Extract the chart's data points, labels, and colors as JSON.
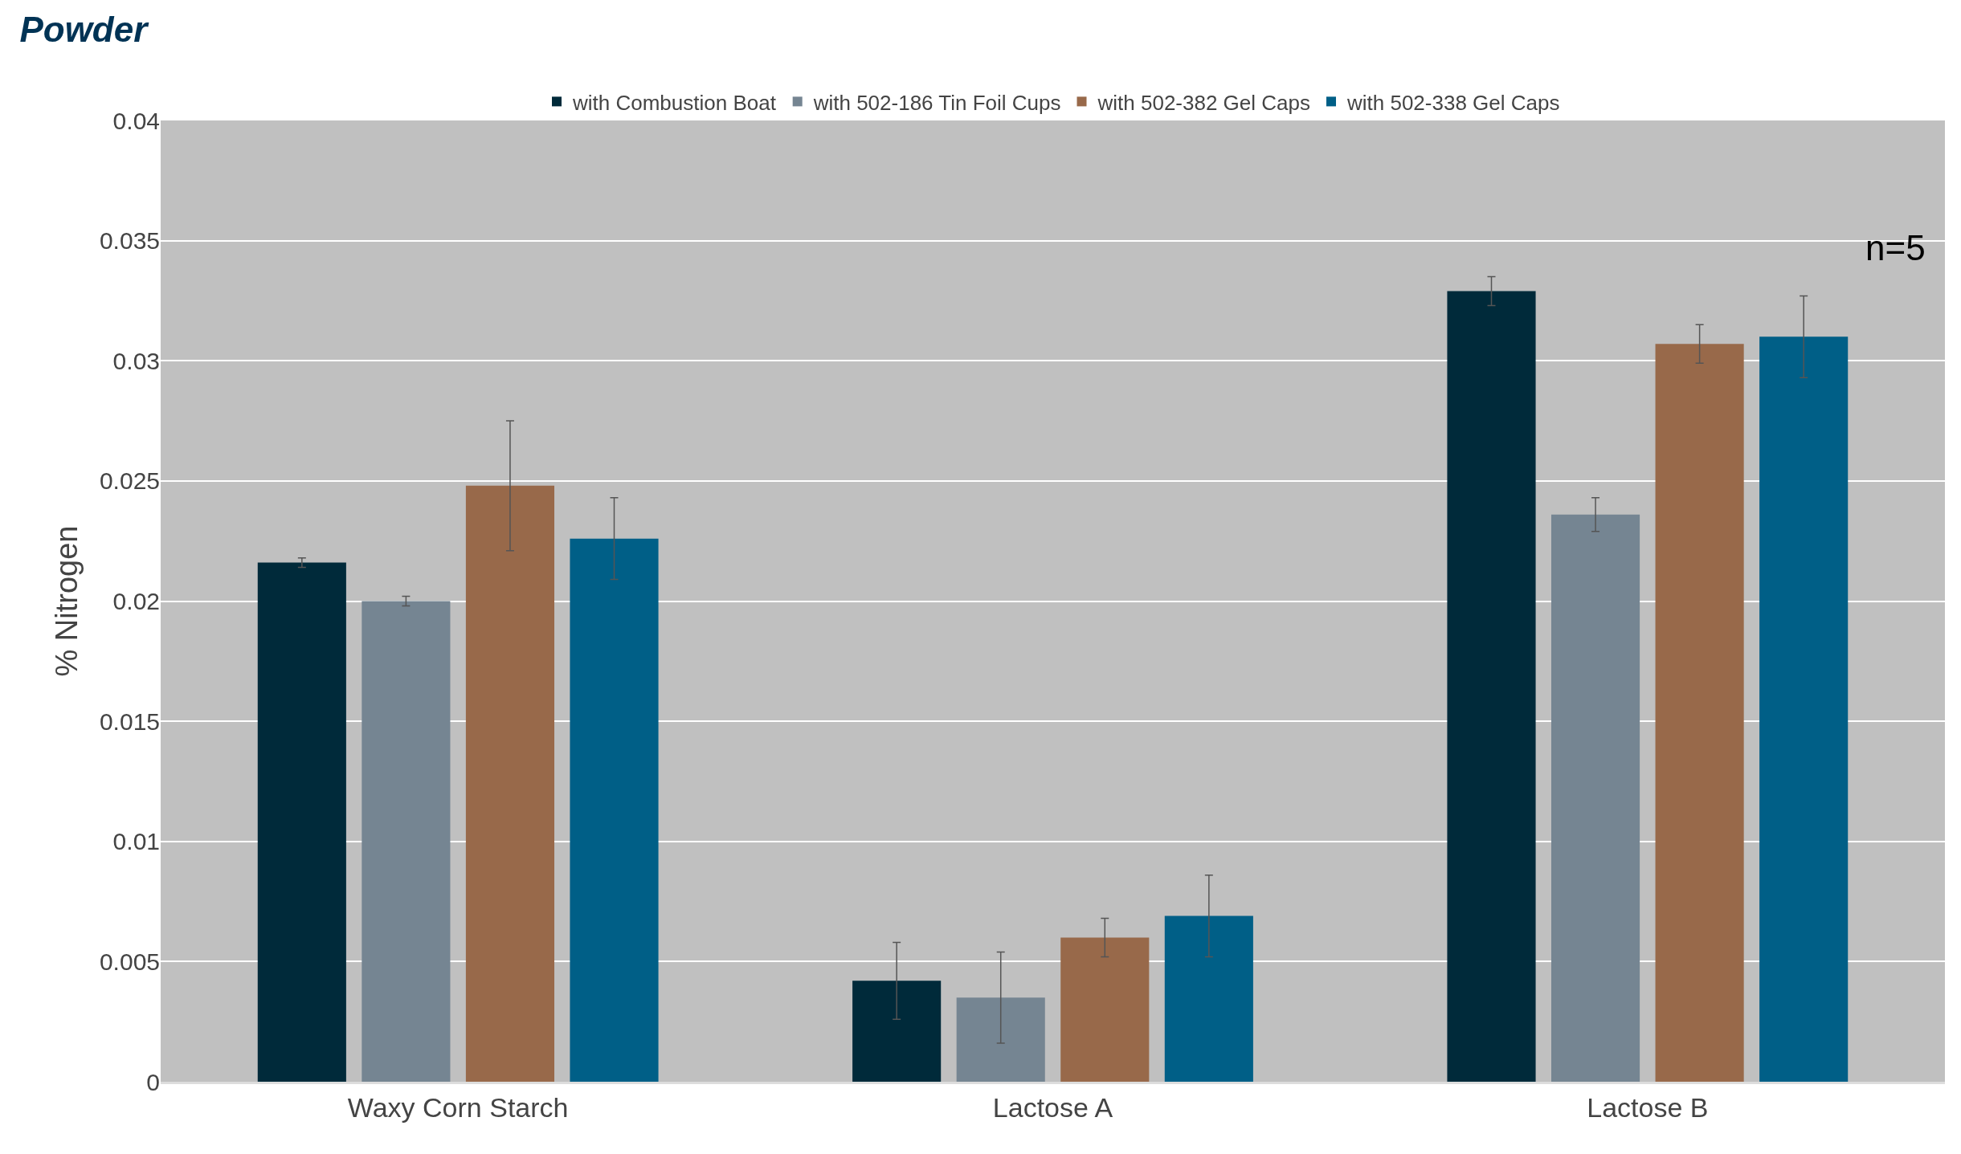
{
  "chart_data": {
    "type": "bar",
    "title": "Powder",
    "ylabel": "% Nitrogen",
    "categories": [
      "Waxy Corn Starch",
      "Lactose A",
      "Lactose B"
    ],
    "series": [
      {
        "name": "with Combustion Boat",
        "color": "#002a3a",
        "values": [
          0.0216,
          0.0042,
          0.0329
        ],
        "errors": [
          0.0002,
          0.0016,
          0.0006
        ]
      },
      {
        "name": "with 502-186 Tin Foil Cups",
        "color": "#758592",
        "values": [
          0.02,
          0.0035,
          0.0236
        ],
        "errors": [
          0.0002,
          0.0019,
          0.0007
        ]
      },
      {
        "name": "with 502-382 Gel Caps",
        "color": "#98694a",
        "values": [
          0.0248,
          0.006,
          0.0307
        ],
        "errors": [
          0.0027,
          0.0008,
          0.0008
        ]
      },
      {
        "name": "with 502-338 Gel Caps",
        "color": "#005f87",
        "values": [
          0.0226,
          0.0069,
          0.031
        ],
        "errors": [
          0.0017,
          0.0017,
          0.0017
        ]
      }
    ],
    "ylim": [
      0,
      0.04
    ],
    "yticks": [
      0,
      0.005,
      0.01,
      0.015,
      0.02,
      0.025,
      0.03,
      0.035,
      0.04
    ],
    "grid": "y",
    "legend": "top",
    "annotations": [
      "n=5"
    ]
  }
}
